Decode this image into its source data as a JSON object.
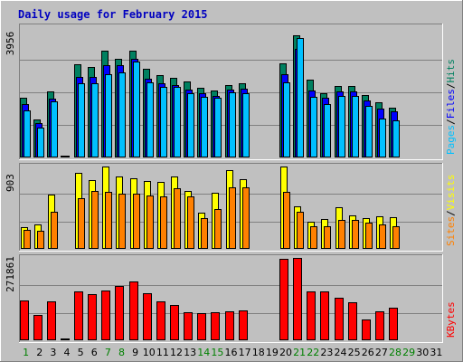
{
  "colors": {
    "background": "#c0c0c0",
    "frame_dark": "#808080",
    "frame_light": "#ffffff",
    "plot_bg": "#c0c0c0",
    "grid": "#808080",
    "title": "#0000c0",
    "axis_text": "#000000",
    "weekend_day": "#008000",
    "pages": "#00c0ff",
    "files": "#0000ff",
    "hits": "#008060",
    "visits": "#ffff00",
    "sites": "#ff8000",
    "kbytes": "#ff0000",
    "bar_edge": "#000000",
    "slash": "#000000"
  },
  "chart_data": {
    "type": "bar",
    "title": "Daily usage for February 2015",
    "categories": [
      "1",
      "2",
      "3",
      "4",
      "5",
      "6",
      "7",
      "8",
      "9",
      "10",
      "11",
      "12",
      "13",
      "14",
      "15",
      "16",
      "17",
      "18",
      "19",
      "20",
      "21",
      "22",
      "23",
      "24",
      "25",
      "26",
      "27",
      "28",
      "29",
      "30",
      "31"
    ],
    "weekend_days": [
      "1",
      "7",
      "8",
      "14",
      "15",
      "21",
      "22",
      "28",
      "29"
    ],
    "panels": [
      {
        "name": "hits-files-pages",
        "ymax_label": "3956",
        "ymax": 3956,
        "legend": [
          {
            "label": "Pages",
            "color_key": "pages"
          },
          {
            "label": "Files",
            "color_key": "files"
          },
          {
            "label": "Hits",
            "color_key": "hits"
          }
        ],
        "series": [
          {
            "name": "Hits",
            "color_key": "hits",
            "values": [
              1810,
              1165,
              2010,
              50,
              2840,
              2740,
              3240,
              2990,
              3250,
              2690,
              2490,
              2410,
              2300,
              2110,
              2040,
              2190,
              2240,
              0,
              0,
              2860,
              3720,
              2370,
              1950,
              2180,
              2180,
              1900,
              1670,
              1500,
              0,
              0,
              0
            ]
          },
          {
            "name": "Files",
            "color_key": "files",
            "values": [
              1620,
              1040,
              1780,
              50,
              2440,
              2440,
              2790,
              2790,
              2990,
              2390,
              2240,
              2190,
              2050,
              1960,
              1870,
              2060,
              2090,
              0,
              0,
              2530,
              3310,
              2040,
              1800,
              2010,
              2010,
              1720,
              1480,
              1400,
              0,
              0,
              0
            ]
          },
          {
            "name": "Pages",
            "color_key": "pages",
            "values": [
              1430,
              920,
              1710,
              30,
              2240,
              2240,
              2520,
              2590,
              2910,
              2270,
              2140,
              2140,
              1940,
              1830,
              1800,
              1980,
              1940,
              0,
              0,
              2270,
              3640,
              1830,
              1630,
              1880,
              1870,
              1560,
              1180,
              1130,
              0,
              0,
              0
            ]
          }
        ]
      },
      {
        "name": "visits-sites",
        "ymax_label": "903",
        "ymax": 903,
        "legend": [
          {
            "label": "Sites",
            "color_key": "sites"
          },
          {
            "label": "Visits",
            "color_key": "visits"
          }
        ],
        "series": [
          {
            "name": "Visits",
            "color_key": "visits",
            "values": [
              240,
              265,
              600,
              10,
              830,
              750,
              903,
              790,
              770,
              740,
              730,
              790,
              640,
              400,
              620,
              860,
              760,
              0,
              0,
              903,
              470,
              300,
              330,
              460,
              370,
              340,
              360,
              350,
              0,
              0,
              0
            ]
          },
          {
            "name": "Sites",
            "color_key": "sites",
            "values": [
              210,
              200,
              410,
              10,
              560,
              640,
              630,
              610,
              610,
              590,
              580,
              660,
              580,
              340,
              440,
              670,
              670,
              0,
              0,
              630,
              410,
              250,
              250,
              320,
              320,
              290,
              270,
              250,
              0,
              0,
              0
            ]
          }
        ]
      },
      {
        "name": "kbytes",
        "ymax_label": "271861",
        "ymax": 271861,
        "legend": [
          {
            "label": "KBytes",
            "color_key": "kbytes"
          }
        ],
        "series": [
          {
            "name": "KBytes",
            "color_key": "kbytes",
            "values": [
              130000,
              85000,
              128000,
              5000,
              162000,
              152000,
              165000,
              180000,
              195000,
              156000,
              128000,
              117000,
              94000,
              90000,
              92000,
              97000,
              98000,
              0,
              0,
              270000,
              271861,
              160000,
              162000,
              140000,
              124000,
              70000,
              95000,
              108000,
              0,
              0,
              0
            ]
          }
        ]
      }
    ]
  }
}
